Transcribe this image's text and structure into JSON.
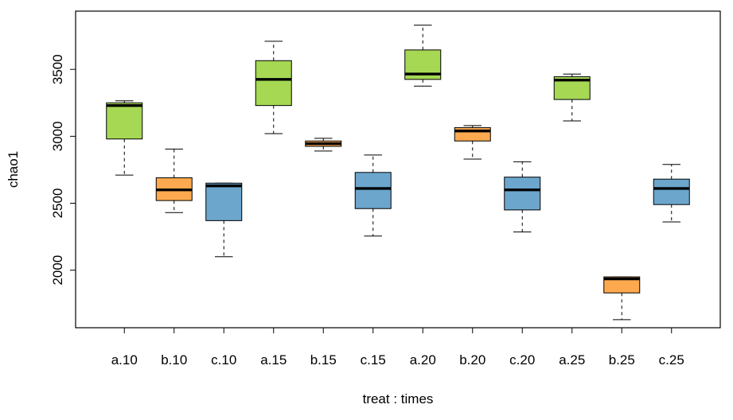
{
  "chart_data": {
    "type": "boxplot",
    "title": "",
    "xlabel": "treat : times",
    "ylabel": "chao1",
    "ylim": [
      1570,
      3935
    ],
    "yticks": [
      2000,
      2500,
      3000,
      3500
    ],
    "grid": false,
    "legend": "none",
    "group_colors": {
      "a": "#A6D854",
      "b": "#FDA94F",
      "c": "#6CA6CD"
    },
    "boxes": [
      {
        "label": "a.10",
        "group": "a",
        "min": 2710,
        "q1": 2980,
        "median": 3230,
        "q3": 3250,
        "max": 3265
      },
      {
        "label": "b.10",
        "group": "b",
        "min": 2430,
        "q1": 2520,
        "median": 2600,
        "q3": 2690,
        "max": 2905
      },
      {
        "label": "c.10",
        "group": "c",
        "min": 2100,
        "q1": 2370,
        "median": 2630,
        "q3": 2650,
        "max": 2650
      },
      {
        "label": "a.15",
        "group": "a",
        "min": 3020,
        "q1": 3230,
        "median": 3425,
        "q3": 3565,
        "max": 3710
      },
      {
        "label": "b.15",
        "group": "b",
        "min": 2890,
        "q1": 2925,
        "median": 2945,
        "q3": 2965,
        "max": 2985
      },
      {
        "label": "c.15",
        "group": "c",
        "min": 2255,
        "q1": 2460,
        "median": 2610,
        "q3": 2730,
        "max": 2860
      },
      {
        "label": "a.20",
        "group": "a",
        "min": 3375,
        "q1": 3425,
        "median": 3465,
        "q3": 3645,
        "max": 3830
      },
      {
        "label": "b.20",
        "group": "b",
        "min": 2830,
        "q1": 2965,
        "median": 3040,
        "q3": 3065,
        "max": 3080
      },
      {
        "label": "c.20",
        "group": "c",
        "min": 2285,
        "q1": 2450,
        "median": 2600,
        "q3": 2695,
        "max": 2810
      },
      {
        "label": "a.25",
        "group": "a",
        "min": 3115,
        "q1": 3275,
        "median": 3420,
        "q3": 3445,
        "max": 3465
      },
      {
        "label": "b.25",
        "group": "b",
        "min": 1630,
        "q1": 1830,
        "median": 1935,
        "q3": 1950,
        "max": 1950
      },
      {
        "label": "c.25",
        "group": "c",
        "min": 2360,
        "q1": 2490,
        "median": 2610,
        "q3": 2680,
        "max": 2790
      }
    ]
  }
}
